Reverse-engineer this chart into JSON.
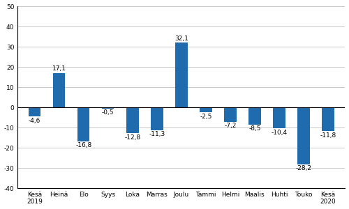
{
  "categories": [
    "Kesä\n2019",
    "Heinä",
    "Elo",
    "Syys",
    "Loka",
    "Marras",
    "Joulu",
    "Tammi",
    "Helmi",
    "Maalis",
    "Huhti",
    "Touko",
    "Kesä\n2020"
  ],
  "values": [
    -4.6,
    17.1,
    -16.8,
    -0.5,
    -12.8,
    -11.3,
    32.1,
    -2.5,
    -7.2,
    -8.5,
    -10.4,
    -28.2,
    -11.8
  ],
  "bar_color": "#1F6BAD",
  "ylim": [
    -40,
    50
  ],
  "yticks": [
    -40,
    -30,
    -20,
    -10,
    0,
    10,
    20,
    30,
    40,
    50
  ],
  "label_fontsize": 6.5,
  "tick_fontsize": 6.5,
  "background_color": "#ffffff",
  "grid_color": "#c8c8c8",
  "bar_width": 0.5
}
